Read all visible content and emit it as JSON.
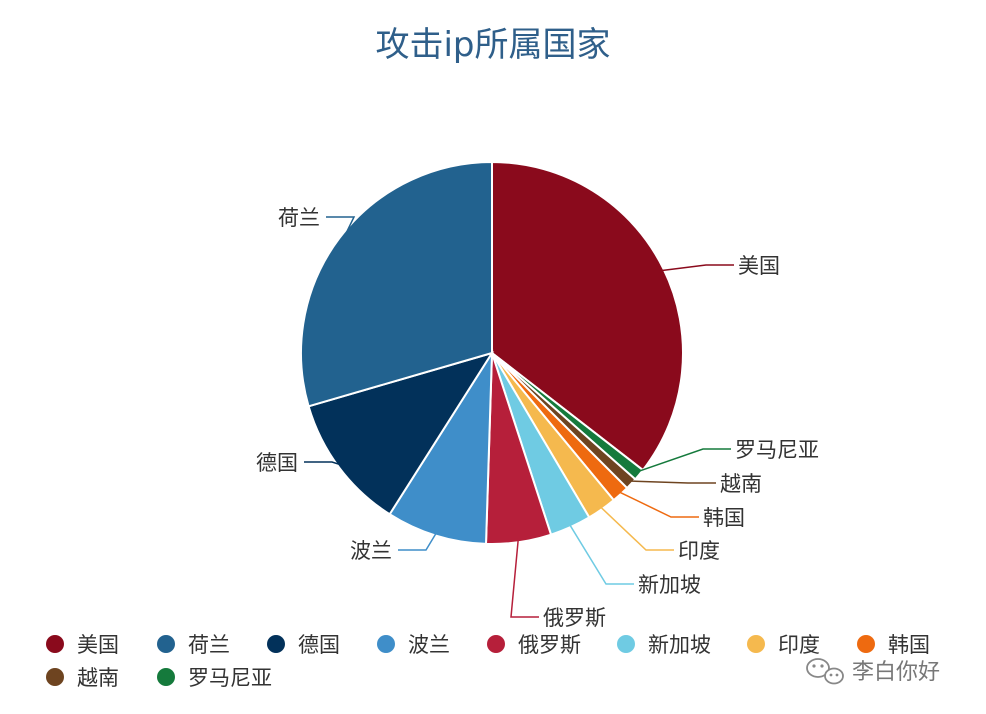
{
  "chart_data": {
    "type": "pie",
    "title": "攻击ip所属国家",
    "slices": [
      {
        "label": "美国",
        "value": 35.5,
        "color": "#8a0a1c"
      },
      {
        "label": "罗马尼亚",
        "value": 1.0,
        "color": "#157a3c"
      },
      {
        "label": "越南",
        "value": 1.0,
        "color": "#6e4420"
      },
      {
        "label": "韩国",
        "value": 1.5,
        "color": "#ee6a10"
      },
      {
        "label": "印度",
        "value": 2.5,
        "color": "#f5b94e"
      },
      {
        "label": "新加坡",
        "value": 3.5,
        "color": "#6fcbe3"
      },
      {
        "label": "俄罗斯",
        "value": 5.5,
        "color": "#b61f3a"
      },
      {
        "label": "波兰",
        "value": 8.5,
        "color": "#3f8ec9"
      },
      {
        "label": "德国",
        "value": 11.5,
        "color": "#02315a"
      },
      {
        "label": "荷兰",
        "value": 29.5,
        "color": "#22628f"
      }
    ],
    "legend_order": [
      "美国",
      "荷兰",
      "德国",
      "波兰",
      "俄罗斯",
      "新加坡",
      "印度",
      "韩国",
      "越南",
      "罗马尼亚"
    ],
    "legend_position": "bottom-left"
  },
  "watermark": {
    "icon": "wechat-icon",
    "text": "李白你好"
  }
}
